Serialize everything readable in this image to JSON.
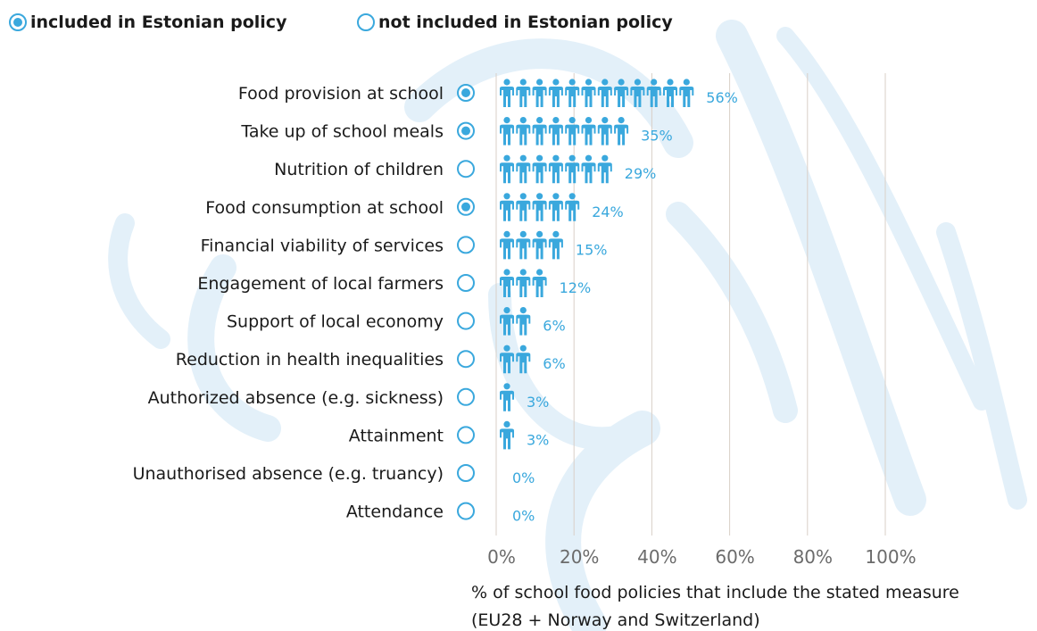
{
  "legend": {
    "included": "included in Estonian policy",
    "not_included": "not included in Estonian policy"
  },
  "colors": {
    "accent": "#3aa8dd",
    "grid": "#d9cfc7",
    "tick": "#6b6b6b"
  },
  "caption": {
    "line1": "% of school food policies that include the stated measure",
    "line2": "(EU28 + Norway and Switzerland)"
  },
  "chart_data": {
    "type": "bar",
    "categories": [
      "Food provision at school",
      "Take up of school meals",
      "Nutrition of children",
      "Food consumption at school",
      "Financial viability of services",
      "Engagement of local farmers",
      "Support of local economy",
      "Reduction in health inequalities",
      "Authorized absence (e.g. sickness)",
      "Attainment",
      "Unauthorised absence (e.g. truancy)",
      "Attendance"
    ],
    "values": [
      56,
      35,
      29,
      24,
      15,
      12,
      6,
      6,
      3,
      3,
      0,
      0
    ],
    "value_labels": [
      "56%",
      "35%",
      "29%",
      "24%",
      "15%",
      "12%",
      "6%",
      "6%",
      "3%",
      "3%",
      "0%",
      "0%"
    ],
    "icon_counts": [
      12,
      8,
      7,
      5,
      4,
      3,
      2,
      2,
      1,
      1,
      0,
      0
    ],
    "included_in_estonian_policy": [
      true,
      true,
      false,
      true,
      false,
      false,
      false,
      false,
      false,
      false,
      false,
      false
    ],
    "xticks": [
      "0%",
      "20%",
      "40%",
      "60%",
      "80%",
      "100%"
    ],
    "xlim": [
      0,
      100
    ],
    "grid": true,
    "icon": "person-icon"
  }
}
